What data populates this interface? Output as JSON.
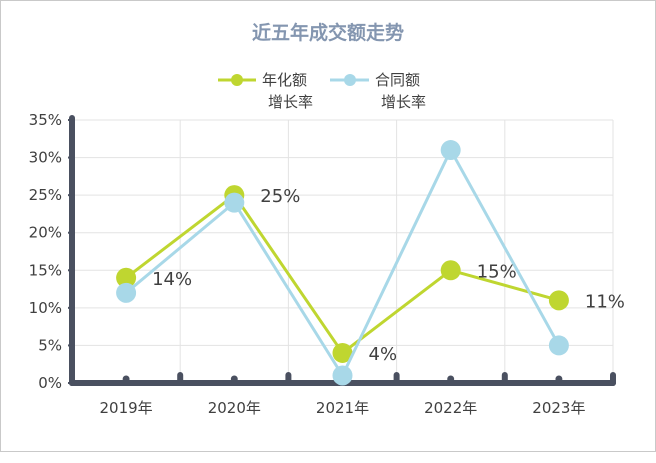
{
  "chart_data": {
    "type": "line",
    "title": "近五年成交额走势",
    "categories": [
      "2019年",
      "2020年",
      "2021年",
      "2022年",
      "2023年"
    ],
    "series": [
      {
        "name_line1": "年化额",
        "name_line2": "增长率",
        "color": "#bfd630",
        "values": [
          14,
          25,
          4,
          15,
          11
        ],
        "labels": [
          "14%",
          "25%",
          "4%",
          "15%",
          "11%"
        ]
      },
      {
        "name_line1": "合同额",
        "name_line2": "增长率",
        "color": "#a8d8e8",
        "values": [
          12,
          24,
          1,
          31,
          5
        ]
      }
    ],
    "y_ticks": [
      "0%",
      "5%",
      "10%",
      "15%",
      "20%",
      "25%",
      "30%",
      "35%"
    ],
    "ylim": [
      0,
      35
    ],
    "grid": true,
    "legend": "top"
  }
}
